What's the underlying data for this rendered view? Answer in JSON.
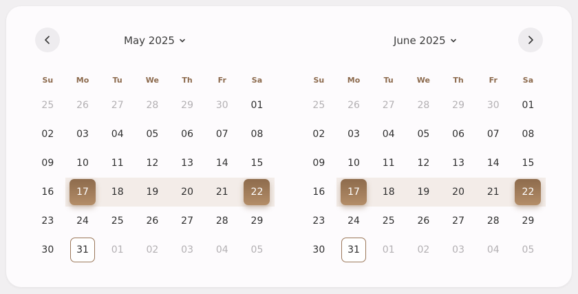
{
  "nav": {
    "prev_icon": "chevron-left-icon",
    "next_icon": "chevron-right-icon"
  },
  "weekdays": [
    "Su",
    "Mo",
    "Tu",
    "We",
    "Th",
    "Fr",
    "Sa"
  ],
  "calendars": [
    {
      "title": "May 2025",
      "weeks": [
        [
          {
            "d": "25",
            "m": true
          },
          {
            "d": "26",
            "m": true
          },
          {
            "d": "27",
            "m": true
          },
          {
            "d": "28",
            "m": true
          },
          {
            "d": "29",
            "m": true
          },
          {
            "d": "30",
            "m": true
          },
          {
            "d": "01"
          }
        ],
        [
          {
            "d": "02"
          },
          {
            "d": "03"
          },
          {
            "d": "04"
          },
          {
            "d": "05"
          },
          {
            "d": "06"
          },
          {
            "d": "07"
          },
          {
            "d": "08"
          }
        ],
        [
          {
            "d": "09"
          },
          {
            "d": "10"
          },
          {
            "d": "11"
          },
          {
            "d": "12"
          },
          {
            "d": "13"
          },
          {
            "d": "14"
          },
          {
            "d": "15"
          }
        ],
        [
          {
            "d": "16"
          },
          {
            "d": "17",
            "s": true
          },
          {
            "d": "18"
          },
          {
            "d": "19"
          },
          {
            "d": "20"
          },
          {
            "d": "21"
          },
          {
            "d": "22",
            "s": true
          }
        ],
        [
          {
            "d": "23"
          },
          {
            "d": "24"
          },
          {
            "d": "25"
          },
          {
            "d": "26"
          },
          {
            "d": "27"
          },
          {
            "d": "28"
          },
          {
            "d": "29"
          }
        ],
        [
          {
            "d": "30"
          },
          {
            "d": "31",
            "t": true
          },
          {
            "d": "01",
            "m": true
          },
          {
            "d": "02",
            "m": true
          },
          {
            "d": "03",
            "m": true
          },
          {
            "d": "04",
            "m": true
          },
          {
            "d": "05",
            "m": true
          }
        ]
      ]
    },
    {
      "title": "June 2025",
      "weeks": [
        [
          {
            "d": "25",
            "m": true
          },
          {
            "d": "26",
            "m": true
          },
          {
            "d": "27",
            "m": true
          },
          {
            "d": "28",
            "m": true
          },
          {
            "d": "29",
            "m": true
          },
          {
            "d": "30",
            "m": true
          },
          {
            "d": "01"
          }
        ],
        [
          {
            "d": "02"
          },
          {
            "d": "03"
          },
          {
            "d": "04"
          },
          {
            "d": "05"
          },
          {
            "d": "06"
          },
          {
            "d": "07"
          },
          {
            "d": "08"
          }
        ],
        [
          {
            "d": "09"
          },
          {
            "d": "10"
          },
          {
            "d": "11"
          },
          {
            "d": "12"
          },
          {
            "d": "13"
          },
          {
            "d": "14"
          },
          {
            "d": "15"
          }
        ],
        [
          {
            "d": "16"
          },
          {
            "d": "17",
            "s": true
          },
          {
            "d": "18"
          },
          {
            "d": "19"
          },
          {
            "d": "20"
          },
          {
            "d": "21"
          },
          {
            "d": "22",
            "s": true
          }
        ],
        [
          {
            "d": "23"
          },
          {
            "d": "24"
          },
          {
            "d": "25"
          },
          {
            "d": "26"
          },
          {
            "d": "27"
          },
          {
            "d": "28"
          },
          {
            "d": "29"
          }
        ],
        [
          {
            "d": "30"
          },
          {
            "d": "31",
            "t": true
          },
          {
            "d": "01",
            "m": true
          },
          {
            "d": "02",
            "m": true
          },
          {
            "d": "03",
            "m": true
          },
          {
            "d": "04",
            "m": true
          },
          {
            "d": "05",
            "m": true
          }
        ]
      ]
    }
  ],
  "colors": {
    "accent": "#8d6b4c",
    "range": "#f3ece8",
    "weekday": "#8c6a4d",
    "muted": "#b3b0b3"
  }
}
